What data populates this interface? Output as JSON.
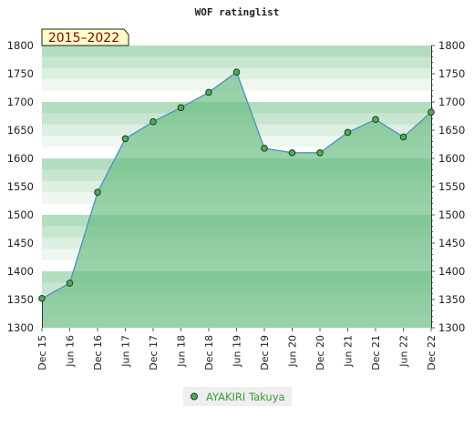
{
  "chart_data": {
    "type": "area",
    "title": "WOF ratinglist",
    "period_badge": "2015–2022",
    "categories": [
      "Dec 15",
      "Jun 16",
      "Dec 16",
      "Jun 17",
      "Dec 17",
      "Jun 18",
      "Dec 18",
      "Jun 19",
      "Dec 19",
      "Jun 20",
      "Dec 20",
      "Jun 21",
      "Dec 21",
      "Jun 22",
      "Dec 22"
    ],
    "series": [
      {
        "name": "AYAKIRI Takuya",
        "values": [
          1352,
          1379,
          1540,
          1635,
          1665,
          1690,
          1717,
          1753,
          1618,
          1610,
          1610,
          1646,
          1669,
          1638,
          1682
        ]
      }
    ],
    "ylim": [
      1300,
      1800
    ],
    "yticks": [
      1300,
      1350,
      1400,
      1450,
      1500,
      1550,
      1600,
      1650,
      1700,
      1750,
      1800
    ],
    "legend_position": "bottom-center",
    "colors": {
      "line": "#4a90c8",
      "marker": "#4caf50",
      "fill": "#6dbd85",
      "badge_bg": "#ffffc8",
      "legend_bg": "#eeeeee"
    }
  }
}
